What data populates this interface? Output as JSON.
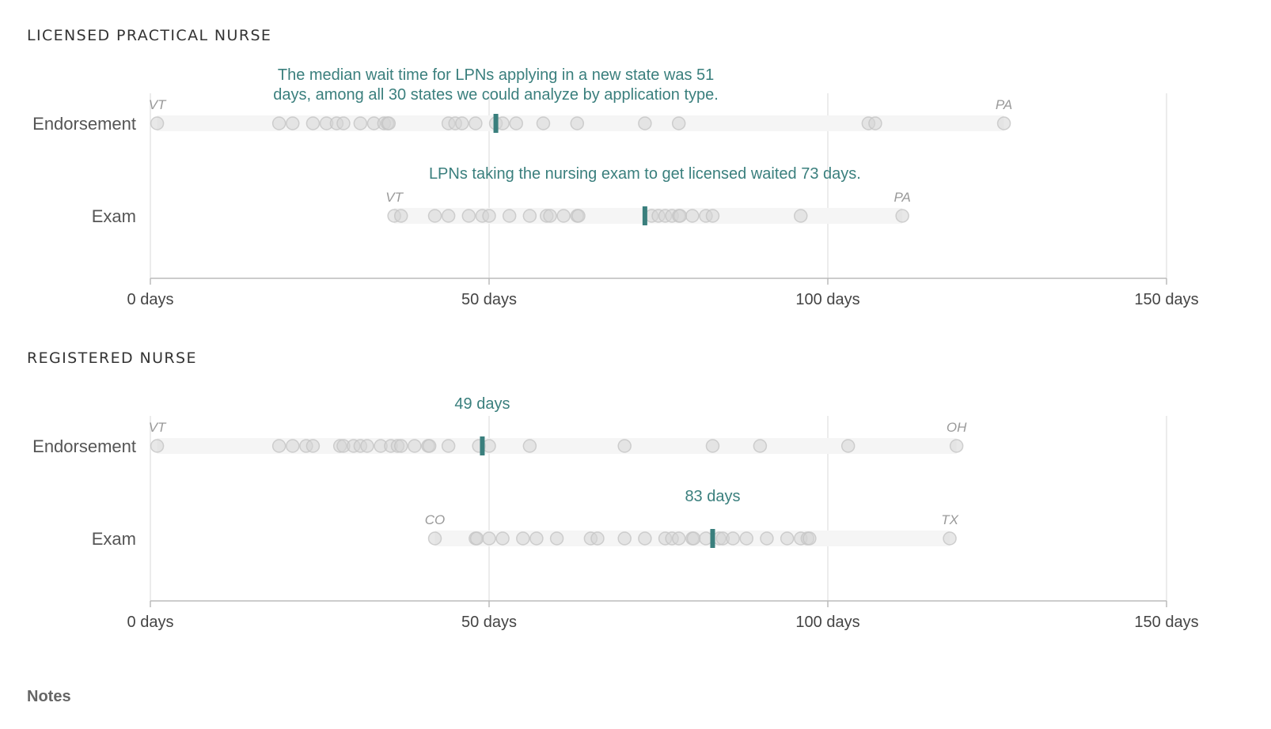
{
  "colors": {
    "median": "#3a7f7d",
    "dot_fill": "#d5d5d5",
    "dot_stroke": "#c4c4c4",
    "band": "#f5f5f5",
    "grid": "#e6e6e6",
    "axis": "#bbbbbb"
  },
  "notes_label": "Notes",
  "chart_data": [
    {
      "type": "scatter",
      "title": "LICENSED PRACTICAL NURSE",
      "xlim": [
        0,
        150
      ],
      "x_ticks": [
        0,
        50,
        100,
        150
      ],
      "x_tick_labels": [
        "0 days",
        "50 days",
        "100 days",
        "150 days"
      ],
      "grid": true,
      "rows": [
        {
          "name": "Endorsement",
          "values": [
            1,
            19,
            21,
            24,
            26,
            27.5,
            28.5,
            31,
            33,
            34.5,
            35,
            35.2,
            44,
            45,
            46,
            48,
            51,
            52,
            54,
            58,
            63,
            73,
            78,
            106,
            107,
            126
          ],
          "median": 51,
          "min_label": "VT",
          "max_label": "PA",
          "annotation": [
            "The median wait time for LPNs applying in a new state was 51",
            "days, among all 30 states we could analyze by application type."
          ]
        },
        {
          "name": "Exam",
          "values": [
            36,
            37,
            42,
            44,
            47,
            49,
            50,
            53,
            56,
            58.5,
            59,
            61,
            63,
            63.2,
            74,
            75,
            76,
            77,
            78,
            78.2,
            80,
            82,
            83,
            96,
            111
          ],
          "median": 73,
          "min_label": "VT",
          "max_label": "PA",
          "annotation": [
            "LPNs taking the nursing exam to get licensed waited 73 days."
          ]
        }
      ]
    },
    {
      "type": "scatter",
      "title": "REGISTERED NURSE",
      "xlim": [
        0,
        150
      ],
      "x_ticks": [
        0,
        50,
        100,
        150
      ],
      "x_tick_labels": [
        "0 days",
        "50 days",
        "100 days",
        "150 days"
      ],
      "grid": true,
      "rows": [
        {
          "name": "Endorsement",
          "values": [
            1,
            19,
            21,
            23,
            24,
            28,
            28.5,
            30,
            31,
            32,
            34,
            35.5,
            36.5,
            37,
            39,
            41,
            41.2,
            44,
            48.5,
            50,
            56,
            70,
            83,
            90,
            103,
            119
          ],
          "median": 49,
          "min_label": "VT",
          "max_label": "OH",
          "annotation": [
            "49 days"
          ]
        },
        {
          "name": "Exam",
          "values": [
            42,
            48,
            48.2,
            50,
            52,
            55,
            57,
            60,
            65,
            66,
            70,
            73,
            76,
            77,
            78,
            80,
            80.2,
            82,
            84,
            84.5,
            86,
            88,
            91,
            94,
            96,
            97,
            97.3,
            118
          ],
          "median": 83,
          "min_label": "CO",
          "max_label": "TX",
          "annotation": [
            "83 days"
          ]
        }
      ]
    }
  ]
}
